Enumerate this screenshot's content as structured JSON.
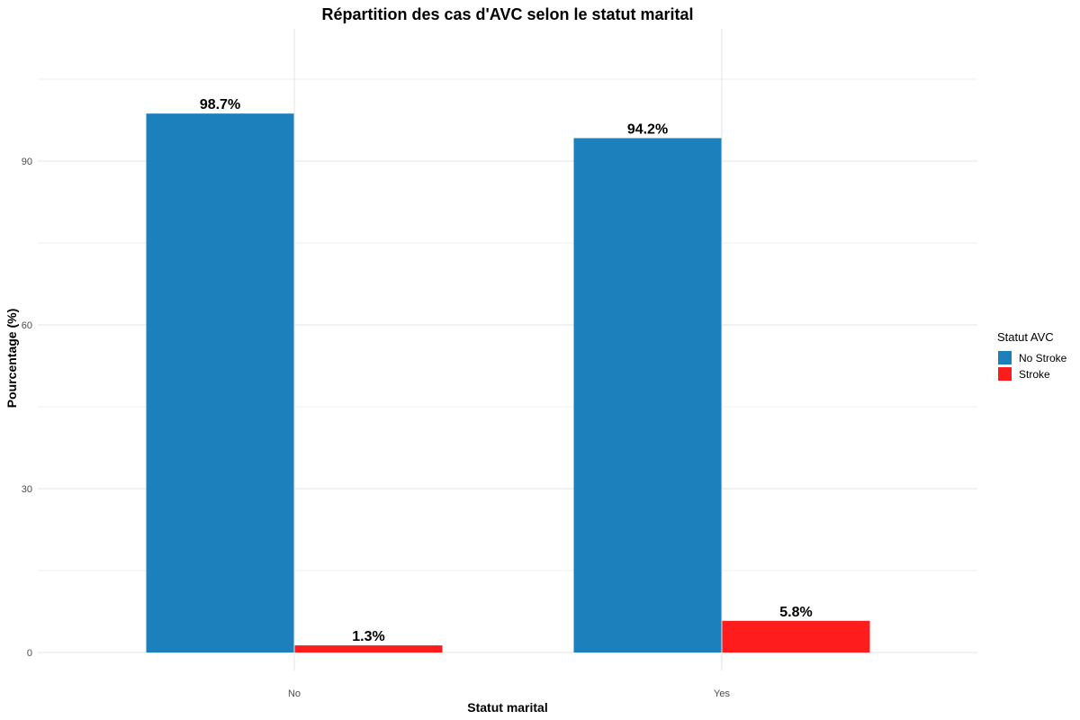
{
  "chart_data": {
    "type": "bar",
    "title": "Répartition des cas d'AVC selon le statut marital",
    "xlabel": "Statut marital",
    "ylabel": "Pourcentage (%)",
    "categories": [
      "No",
      "Yes"
    ],
    "series": [
      {
        "name": "No Stroke",
        "values": [
          98.7,
          94.2
        ],
        "labels": [
          "98.7%",
          "94.2%"
        ],
        "color": "#1b80bb"
      },
      {
        "name": "Stroke",
        "values": [
          1.3,
          5.8
        ],
        "labels": [
          "1.3%",
          "5.8%"
        ],
        "color": "#ff1c1c"
      }
    ],
    "ylim": [
      0,
      105
    ],
    "yticks": [
      0,
      30,
      60,
      90
    ],
    "grid": true,
    "legend": {
      "title": "Statut AVC",
      "position": "right"
    }
  }
}
